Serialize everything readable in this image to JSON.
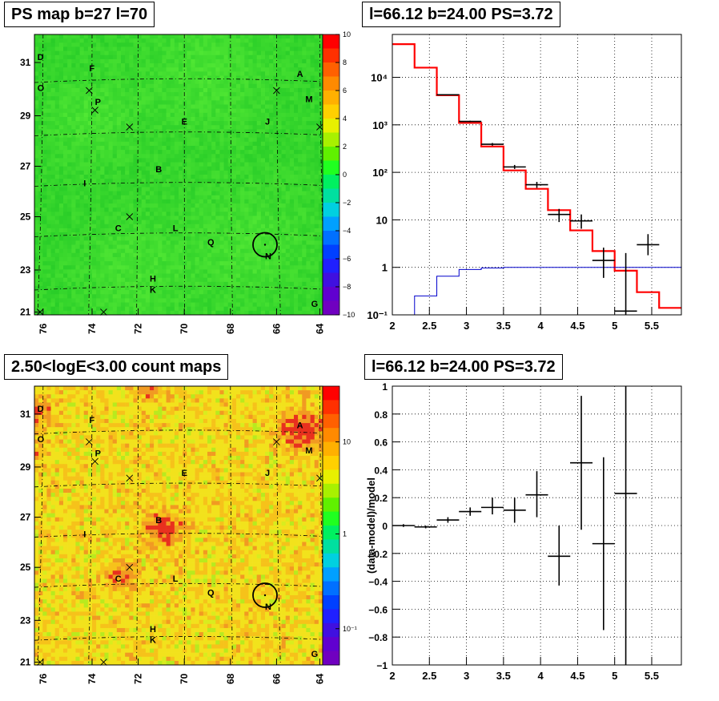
{
  "panels": {
    "tl_title": "PS map b=27 l=70",
    "tr_title": "l=66.12 b=24.00 PS=3.72",
    "bl_title": "2.50<logE<3.00 count maps",
    "br_title": "l=66.12 b=24.00 PS=3.72"
  },
  "maps": {
    "x_ticks": [
      "76",
      "74",
      "72",
      "70",
      "68",
      "66",
      "64"
    ],
    "y_ticks": [
      "31",
      "29",
      "27",
      "25",
      "23",
      "21"
    ],
    "sources": [
      {
        "label": "D"
      },
      {
        "label": "O"
      },
      {
        "label": "F"
      },
      {
        "label": "P"
      },
      {
        "label": "E"
      },
      {
        "label": "J"
      },
      {
        "label": "A"
      },
      {
        "label": "M"
      },
      {
        "label": "B"
      },
      {
        "label": "I"
      },
      {
        "label": "C"
      },
      {
        "label": "L"
      },
      {
        "label": "Q"
      },
      {
        "label": "N"
      },
      {
        "label": "H"
      },
      {
        "label": "K"
      },
      {
        "label": "G"
      }
    ],
    "ps_colorbar_ticks": [
      "10",
      "8",
      "6",
      "4",
      "2",
      "0",
      "−2",
      "−4",
      "−6",
      "−8",
      "−10"
    ],
    "count_colorbar_ticks": [
      "10",
      "1",
      "10⁻¹"
    ],
    "colors": {
      "green": "#22dd22",
      "yellow": "#f2e01a",
      "orange": "#f3a020",
      "red": "#e8301e"
    }
  },
  "chart_data": [
    {
      "type": "line",
      "title": "l=66.12 b=24.00 PS=3.72",
      "xlim": [
        2.0,
        5.9
      ],
      "ylim": [
        0.1,
        80000
      ],
      "yscale": "log",
      "x_ticks": [
        "2",
        "2.5",
        "3",
        "3.5",
        "4",
        "4.5",
        "5",
        "5.5"
      ],
      "y_ticks": [
        "10⁻¹",
        "1",
        "10",
        "10²",
        "10³",
        "10⁴"
      ],
      "series": [
        {
          "style": "model-histogram",
          "color": "#ff0000",
          "edges": [
            2.0,
            2.3,
            2.6,
            2.9,
            3.2,
            3.5,
            3.8,
            4.1,
            4.4,
            4.7,
            5.0,
            5.3,
            5.6,
            5.9
          ],
          "values": [
            50000,
            16000,
            4200,
            1100,
            350,
            110,
            45,
            16,
            6,
            2.2,
            0.85,
            0.3,
            0.14
          ]
        },
        {
          "style": "background-histogram",
          "color": "#0000cc",
          "edges": [
            2.0,
            2.3,
            2.6,
            2.9,
            3.2,
            3.5,
            3.8,
            4.1,
            4.4,
            4.7,
            5.0,
            5.3,
            5.6,
            5.9
          ],
          "values": [
            0.1,
            0.25,
            0.65,
            0.9,
            0.97,
            1,
            1,
            1,
            1,
            1,
            1,
            1,
            1
          ]
        },
        {
          "style": "data-points",
          "color": "#000000",
          "x": [
            2.75,
            3.05,
            3.35,
            3.65,
            3.95,
            4.25,
            4.55,
            4.85,
            5.15,
            5.45
          ],
          "y": [
            4300,
            1180,
            390,
            130,
            55,
            13,
            9.5,
            1.4,
            0.12,
            3.0
          ],
          "yerr_low": [
            4200,
            1140,
            365,
            118,
            47,
            9,
            6.5,
            0.6,
            0.1,
            1.8
          ],
          "yerr_high": [
            4400,
            1220,
            415,
            143,
            63,
            17,
            13,
            2.6,
            2,
            5
          ]
        }
      ]
    },
    {
      "type": "scatter",
      "title": "l=66.12 b=24.00 PS=3.72",
      "ylabel": "(data-model)/model",
      "xlim": [
        2.0,
        5.9
      ],
      "ylim": [
        -1,
        1
      ],
      "x_ticks": [
        "2",
        "2.5",
        "3",
        "3.5",
        "4",
        "4.5",
        "5",
        "5.5"
      ],
      "y_ticks": [
        "−1",
        "−0.8",
        "−0.6",
        "−0.4",
        "−0.2",
        "0",
        "0.2",
        "0.4",
        "0.6",
        "0.8",
        "1"
      ],
      "x": [
        2.15,
        2.45,
        2.75,
        3.05,
        3.35,
        3.65,
        3.95,
        4.25,
        4.55,
        4.85,
        5.15
      ],
      "y": [
        0.0,
        -0.01,
        0.04,
        0.1,
        0.13,
        0.11,
        0.22,
        -0.22,
        0.45,
        -0.13,
        0.23
      ],
      "y_low": [
        -0.01,
        -0.02,
        0.02,
        0.07,
        0.08,
        0.02,
        0.06,
        -0.43,
        -0.03,
        -0.75,
        -1.0
      ],
      "y_high": [
        0.01,
        0.0,
        0.06,
        0.13,
        0.2,
        0.2,
        0.39,
        0.0,
        0.93,
        0.49,
        1.0
      ]
    }
  ]
}
